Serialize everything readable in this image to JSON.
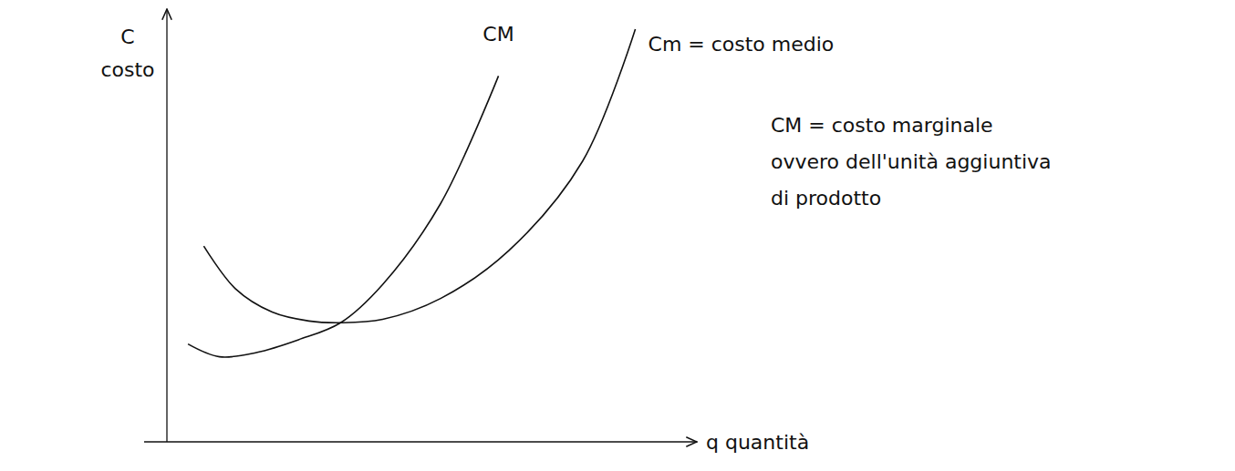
{
  "chart_data": {
    "type": "line",
    "y_label": [
      "C",
      "costo"
    ],
    "x_label": "q quantità",
    "annotation": [
      "CM = costo marginale",
      "ovvero dell'unità aggiuntiva",
      "di prodotto"
    ],
    "xlim": [
      0,
      10
    ],
    "ylim": [
      0,
      10
    ],
    "tick_labels": false,
    "grid": false,
    "series": [
      {
        "name": "CM",
        "color": "#111111",
        "line_style": "solid",
        "x": [
          0.4,
          1.0,
          1.7,
          2.5,
          3.3,
          4.1,
          5.2,
          6.3
        ],
        "values": [
          2.3,
          2.0,
          2.1,
          2.4,
          2.8,
          3.7,
          5.6,
          8.6
        ]
      },
      {
        "name": "Cm = costo medio",
        "color": "#111111",
        "line_style": "solid",
        "x": [
          0.7,
          1.3,
          2.0,
          2.7,
          3.3,
          4.1,
          5.2,
          6.5,
          7.9,
          8.9
        ],
        "values": [
          4.6,
          3.6,
          3.05,
          2.84,
          2.8,
          2.88,
          3.37,
          4.5,
          6.6,
          9.7
        ]
      }
    ]
  }
}
